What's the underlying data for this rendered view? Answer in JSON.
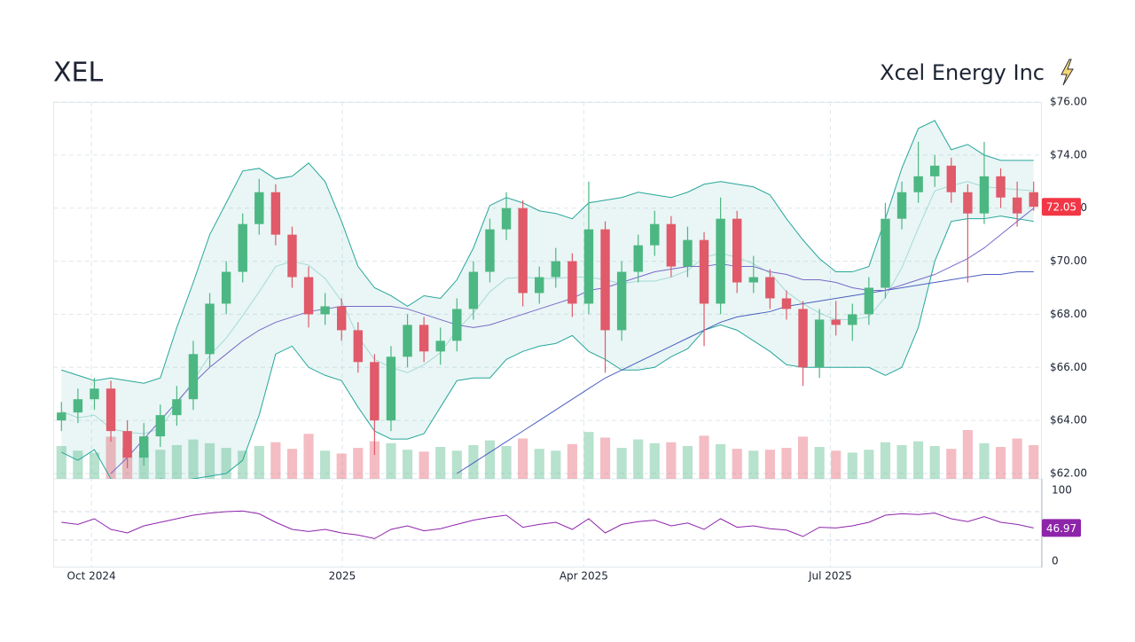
{
  "chart_data": {
    "type": "candlestick",
    "title": "XEL",
    "subtitle": "Xcel Energy Inc",
    "xlim": [
      -0.5,
      59.5
    ],
    "xticks": [
      {
        "value": 1.82,
        "label": "Oct 2024"
      },
      {
        "value": 17.04,
        "label": "2025"
      },
      {
        "value": 31.7,
        "label": "Apr 2025"
      },
      {
        "value": 46.66,
        "label": "Jul 2025"
      }
    ],
    "ylim": [
      62,
      76
    ],
    "yticks": [
      {
        "value": 62,
        "label": "$62.00"
      },
      {
        "value": 64,
        "label": "$64.00"
      },
      {
        "value": 66,
        "label": "$66.00"
      },
      {
        "value": 68,
        "label": "$68.00"
      },
      {
        "value": 70,
        "label": "$70.00"
      },
      {
        "value": 72,
        "label": "$72.00"
      },
      {
        "value": 74,
        "label": "$74.00"
      },
      {
        "value": 76,
        "label": "$76.00"
      }
    ],
    "grid": true,
    "up_color": "#4cb782",
    "down_color": "#e05a6a",
    "band_color": "#26a69a",
    "ma50_color": "#7b68c8",
    "ma200_color": "#4a5fc1",
    "rsi_color": "#8e24aa",
    "ohlc": [
      [
        64.0,
        64.7,
        63.6,
        64.3
      ],
      [
        64.3,
        65.2,
        63.9,
        64.8
      ],
      [
        64.8,
        65.6,
        64.4,
        65.2
      ],
      [
        65.2,
        65.5,
        63.2,
        63.6
      ],
      [
        63.6,
        64.0,
        62.2,
        62.6
      ],
      [
        62.6,
        63.9,
        62.3,
        63.4
      ],
      [
        63.4,
        64.6,
        63.0,
        64.2
      ],
      [
        64.2,
        65.3,
        63.8,
        64.8
      ],
      [
        64.8,
        67.0,
        64.4,
        66.5
      ],
      [
        66.5,
        68.8,
        66.0,
        68.4
      ],
      [
        68.4,
        70.0,
        68.0,
        69.6
      ],
      [
        69.6,
        71.8,
        69.2,
        71.4
      ],
      [
        71.4,
        73.1,
        71.0,
        72.6
      ],
      [
        72.6,
        72.9,
        70.6,
        71.0
      ],
      [
        71.0,
        71.3,
        69.0,
        69.4
      ],
      [
        69.4,
        69.8,
        67.5,
        68.0
      ],
      [
        68.0,
        68.8,
        67.6,
        68.3
      ],
      [
        68.3,
        68.6,
        67.0,
        67.4
      ],
      [
        67.4,
        67.7,
        65.8,
        66.2
      ],
      [
        66.2,
        66.5,
        62.7,
        64.0
      ],
      [
        64.0,
        66.8,
        63.6,
        66.4
      ],
      [
        66.4,
        68.0,
        66.0,
        67.6
      ],
      [
        67.6,
        67.9,
        66.2,
        66.6
      ],
      [
        66.6,
        67.5,
        66.1,
        67.0
      ],
      [
        67.0,
        68.6,
        66.6,
        68.2
      ],
      [
        68.2,
        70.0,
        67.8,
        69.6
      ],
      [
        69.6,
        71.6,
        69.2,
        71.2
      ],
      [
        71.2,
        72.6,
        70.8,
        72.0
      ],
      [
        72.0,
        72.3,
        68.3,
        68.8
      ],
      [
        68.8,
        69.8,
        68.4,
        69.4
      ],
      [
        69.4,
        70.5,
        69.0,
        70.0
      ],
      [
        70.0,
        70.3,
        67.9,
        68.4
      ],
      [
        68.4,
        73.0,
        68.0,
        71.2
      ],
      [
        71.2,
        71.5,
        65.8,
        67.4
      ],
      [
        67.4,
        70.0,
        67.0,
        69.6
      ],
      [
        69.6,
        71.0,
        69.2,
        70.6
      ],
      [
        70.6,
        71.9,
        70.2,
        71.4
      ],
      [
        71.4,
        71.7,
        69.4,
        69.8
      ],
      [
        69.8,
        71.3,
        69.4,
        70.8
      ],
      [
        70.8,
        71.1,
        66.8,
        68.4
      ],
      [
        68.4,
        72.4,
        68.0,
        71.6
      ],
      [
        71.6,
        71.9,
        68.8,
        69.2
      ],
      [
        69.2,
        70.2,
        68.8,
        69.4
      ],
      [
        69.4,
        69.7,
        68.2,
        68.6
      ],
      [
        68.6,
        68.9,
        67.8,
        68.2
      ],
      [
        68.2,
        68.5,
        65.3,
        66.0
      ],
      [
        66.0,
        68.2,
        65.6,
        67.8
      ],
      [
        67.8,
        68.5,
        67.2,
        67.6
      ],
      [
        67.6,
        68.4,
        67.0,
        68.0
      ],
      [
        68.0,
        69.4,
        67.6,
        69.0
      ],
      [
        69.0,
        72.2,
        68.6,
        71.6
      ],
      [
        71.6,
        73.0,
        71.2,
        72.6
      ],
      [
        72.6,
        74.5,
        72.2,
        73.2
      ],
      [
        73.2,
        74.0,
        72.8,
        73.6
      ],
      [
        73.6,
        73.9,
        72.2,
        72.6
      ],
      [
        72.6,
        72.9,
        69.2,
        71.8
      ],
      [
        71.8,
        74.5,
        71.4,
        73.2
      ],
      [
        73.2,
        73.5,
        72.0,
        72.4
      ],
      [
        72.4,
        73.0,
        71.3,
        71.8
      ],
      [
        72.6,
        73.0,
        71.9,
        72.05
      ]
    ],
    "volume": [
      3.5,
      3.0,
      2.8,
      4.5,
      3.2,
      2.9,
      3.1,
      3.6,
      4.2,
      3.8,
      3.3,
      3.0,
      3.5,
      3.9,
      3.2,
      4.8,
      3.0,
      2.7,
      3.3,
      4.0,
      3.8,
      3.1,
      2.9,
      3.4,
      3.0,
      3.6,
      4.1,
      3.5,
      4.3,
      3.2,
      3.0,
      3.7,
      5.0,
      4.4,
      3.3,
      4.2,
      3.8,
      3.9,
      3.5,
      4.6,
      3.7,
      3.2,
      3.0,
      3.1,
      3.3,
      4.5,
      3.4,
      3.0,
      2.8,
      3.1,
      3.9,
      3.6,
      4.0,
      3.5,
      3.2,
      5.2,
      3.8,
      3.4,
      4.3,
      3.6
    ],
    "bb_upper": [
      65.9,
      65.7,
      65.5,
      65.6,
      65.5,
      65.4,
      65.6,
      67.5,
      69.2,
      71.0,
      72.2,
      73.4,
      73.5,
      73.1,
      73.2,
      73.7,
      73.0,
      71.5,
      69.8,
      69.0,
      68.7,
      68.3,
      68.7,
      68.6,
      69.3,
      70.5,
      72.1,
      72.4,
      72.2,
      71.9,
      71.8,
      71.6,
      72.2,
      72.3,
      72.4,
      72.6,
      72.5,
      72.4,
      72.6,
      72.9,
      73.0,
      72.9,
      72.8,
      72.5,
      71.6,
      70.8,
      70.1,
      69.6,
      69.6,
      69.8,
      71.6,
      73.5,
      75.0,
      75.3,
      74.2,
      74.4,
      74.0,
      73.8,
      73.8,
      73.8
    ],
    "bb_lower": [
      62.8,
      62.5,
      62.9,
      61.8,
      61.6,
      61.6,
      61.8,
      61.7,
      61.8,
      61.9,
      62.0,
      62.5,
      64.2,
      66.5,
      66.8,
      66.0,
      65.7,
      65.5,
      64.5,
      63.6,
      63.3,
      63.3,
      63.5,
      64.5,
      65.5,
      65.6,
      65.6,
      66.3,
      66.6,
      66.8,
      66.9,
      67.2,
      66.6,
      66.3,
      65.9,
      65.9,
      66.0,
      66.4,
      66.7,
      67.4,
      67.6,
      67.4,
      67.0,
      66.6,
      66.1,
      66.0,
      66.0,
      66.0,
      66.0,
      66.0,
      65.7,
      66.0,
      67.5,
      70.0,
      71.5,
      71.6,
      71.6,
      71.7,
      71.6,
      71.5
    ],
    "bb_mid": [
      64.35,
      64.1,
      64.2,
      63.7,
      63.55,
      63.5,
      63.7,
      64.6,
      65.5,
      66.45,
      67.1,
      67.95,
      68.85,
      69.8,
      70.0,
      69.85,
      69.35,
      68.5,
      67.15,
      66.3,
      66.0,
      65.8,
      66.1,
      66.55,
      67.4,
      68.05,
      68.85,
      69.35,
      69.4,
      69.35,
      69.35,
      69.4,
      69.4,
      69.3,
      69.15,
      69.25,
      69.25,
      69.4,
      69.65,
      70.15,
      70.3,
      70.15,
      69.9,
      69.55,
      68.85,
      68.4,
      68.05,
      67.8,
      67.8,
      67.9,
      68.65,
      69.75,
      71.25,
      72.65,
      72.85,
      73.0,
      72.8,
      72.75,
      72.7,
      72.65
    ],
    "ma50": [
      null,
      null,
      null,
      62.0,
      62.6,
      63.3,
      64.0,
      64.7,
      65.4,
      66.0,
      66.5,
      67.0,
      67.4,
      67.7,
      67.9,
      68.1,
      68.2,
      68.3,
      68.3,
      68.3,
      68.3,
      68.2,
      68.0,
      67.8,
      67.6,
      67.5,
      67.6,
      67.8,
      68.0,
      68.2,
      68.4,
      68.6,
      68.9,
      69.0,
      69.2,
      69.4,
      69.6,
      69.7,
      69.8,
      69.8,
      69.9,
      69.8,
      69.8,
      69.6,
      69.5,
      69.3,
      69.3,
      69.2,
      69.0,
      68.9,
      68.9,
      69.1,
      69.3,
      69.5,
      69.8,
      70.1,
      70.5,
      71.0,
      71.5,
      72.0
    ],
    "ma200": [
      null,
      null,
      null,
      null,
      null,
      null,
      null,
      null,
      null,
      null,
      null,
      null,
      null,
      null,
      null,
      null,
      null,
      null,
      null,
      null,
      null,
      null,
      null,
      null,
      62.0,
      62.4,
      62.8,
      63.2,
      63.6,
      64.0,
      64.4,
      64.8,
      65.2,
      65.6,
      65.9,
      66.2,
      66.5,
      66.8,
      67.1,
      67.4,
      67.7,
      67.9,
      68.0,
      68.1,
      68.3,
      68.4,
      68.5,
      68.6,
      68.7,
      68.8,
      68.9,
      69.0,
      69.1,
      69.2,
      69.3,
      69.4,
      69.5,
      69.5,
      69.6,
      69.6
    ],
    "rsi": {
      "ylim": [
        0,
        100
      ],
      "yticks": [
        0,
        100
      ],
      "levels": [
        30,
        70
      ],
      "values": [
        55,
        52,
        60,
        45,
        40,
        50,
        55,
        60,
        65,
        68,
        70,
        71,
        67,
        55,
        45,
        42,
        45,
        40,
        37,
        32,
        45,
        50,
        43,
        46,
        52,
        58,
        62,
        65,
        48,
        52,
        55,
        45,
        60,
        40,
        52,
        56,
        58,
        50,
        54,
        45,
        60,
        48,
        50,
        46,
        44,
        35,
        48,
        47,
        50,
        55,
        65,
        67,
        66,
        68,
        60,
        56,
        63,
        55,
        52,
        46.97
      ]
    }
  }
}
